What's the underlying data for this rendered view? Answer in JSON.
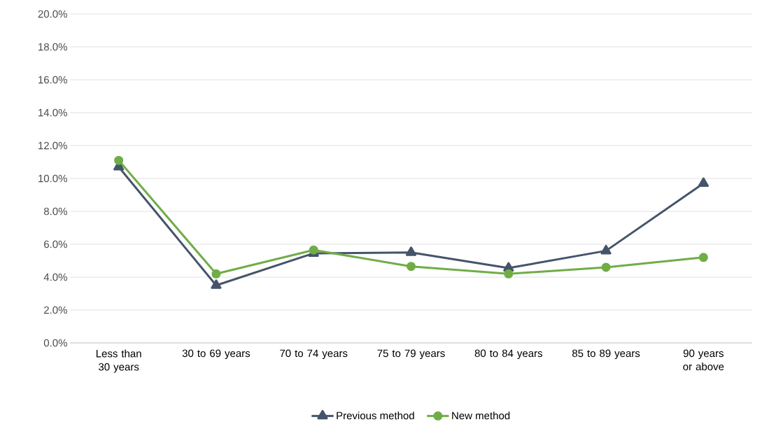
{
  "chart_data": {
    "type": "line",
    "categories": [
      "Less than 30 years",
      "30 to 69 years",
      "70 to 74 years",
      "75 to 79 years",
      "80 to 84 years",
      "85 to 89 years",
      "90 years or above"
    ],
    "series": [
      {
        "name": "Previous method",
        "color": "#44546a",
        "marker": "triangle",
        "values": [
          10.7,
          3.5,
          5.45,
          5.5,
          4.55,
          5.6,
          9.7
        ]
      },
      {
        "name": "New method",
        "color": "#70ad47",
        "marker": "circle",
        "values": [
          11.1,
          4.2,
          5.65,
          4.65,
          4.2,
          4.6,
          5.2
        ]
      }
    ],
    "ylim": [
      0,
      20
    ],
    "yticks": [
      {
        "value": 0,
        "label": "0.0%"
      },
      {
        "value": 2,
        "label": "2.0%"
      },
      {
        "value": 4,
        "label": "4.0%"
      },
      {
        "value": 6,
        "label": "6.0%"
      },
      {
        "value": 8,
        "label": "8.0%"
      },
      {
        "value": 10,
        "label": "10.0%"
      },
      {
        "value": 12,
        "label": "12.0%"
      },
      {
        "value": 14,
        "label": "14.0%"
      },
      {
        "value": 16,
        "label": "16.0%"
      },
      {
        "value": 18,
        "label": "18.0%"
      },
      {
        "value": 20,
        "label": "20.0%"
      }
    ],
    "grid": "y",
    "legend": "bottom",
    "line_style": "solid"
  }
}
